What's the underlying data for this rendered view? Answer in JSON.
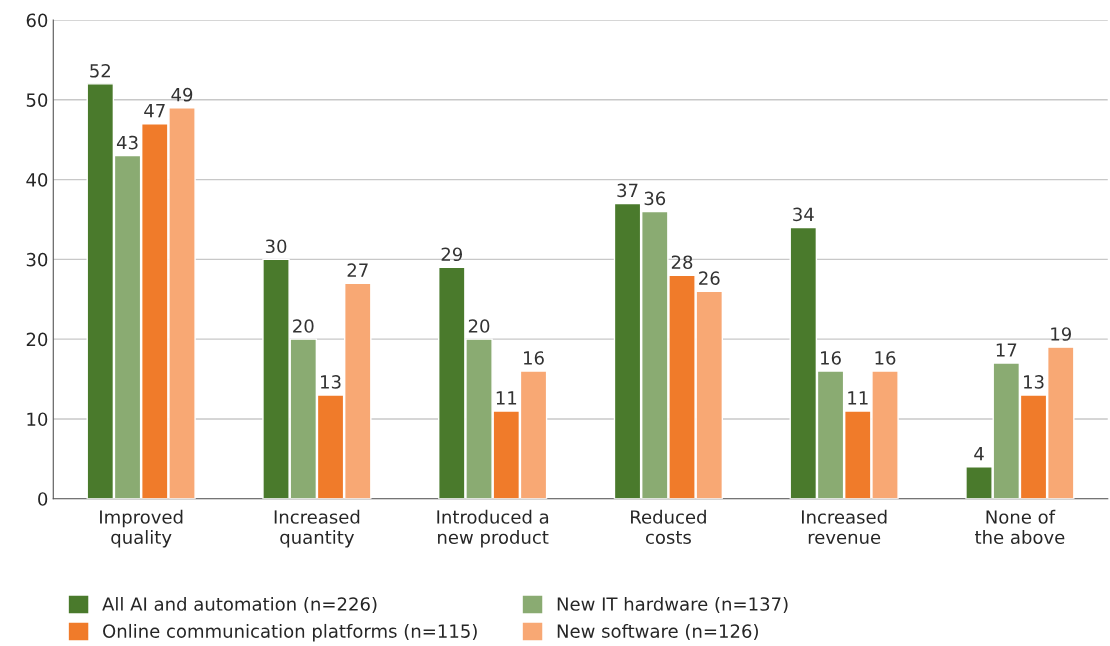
{
  "chart_data": {
    "type": "bar",
    "categories": [
      "Improved\nquality",
      "Increased\nquantity",
      "Introduced a\nnew product",
      "Reduced\ncosts",
      "Increased\nrevenue",
      "None of\nthe above"
    ],
    "series": [
      {
        "name": "All AI and automation (n=226)",
        "color": "#4a7a2c",
        "values": [
          52,
          30,
          29,
          37,
          34,
          4
        ]
      },
      {
        "name": "New IT hardware (n=137)",
        "color": "#8aab72",
        "values": [
          43,
          20,
          20,
          36,
          16,
          17
        ]
      },
      {
        "name": "Online communication platforms (n=115)",
        "color": "#f07b2a",
        "values": [
          47,
          13,
          11,
          28,
          11,
          13
        ]
      },
      {
        "name": "New software (n=126)",
        "color": "#f8a874",
        "values": [
          49,
          27,
          16,
          26,
          16,
          19
        ]
      }
    ],
    "ylim": [
      0,
      60
    ],
    "yticks": [
      0,
      10,
      20,
      30,
      40,
      50,
      60
    ],
    "grid": "y",
    "legend": "bottom",
    "data_labels": true
  }
}
